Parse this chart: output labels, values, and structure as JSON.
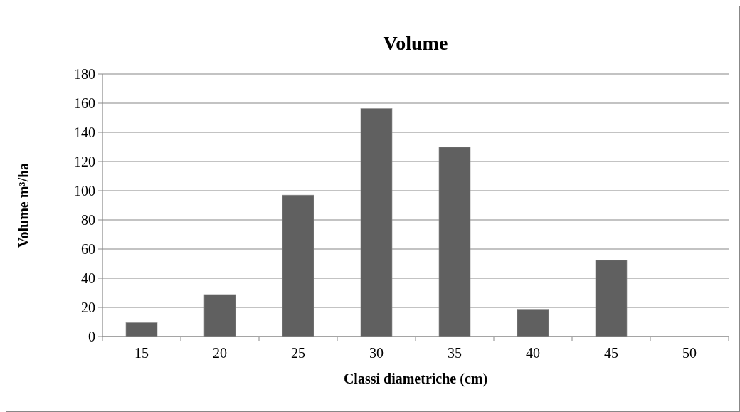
{
  "chart_data": {
    "type": "bar",
    "title": "Volume",
    "xlabel": "Classi diametriche (cm)",
    "ylabel": "Volume m³/ha",
    "categories": [
      "15",
      "20",
      "25",
      "30",
      "35",
      "40",
      "45",
      "50"
    ],
    "series": [
      {
        "color": "#606060",
        "values": [
          9.5,
          28.8,
          97,
          156.3,
          129.8,
          18.7,
          52.3,
          0
        ]
      }
    ],
    "ylim": [
      0,
      180
    ],
    "yticks": [
      0,
      20,
      40,
      60,
      80,
      100,
      120,
      140,
      160,
      180
    ],
    "grid": "y"
  }
}
